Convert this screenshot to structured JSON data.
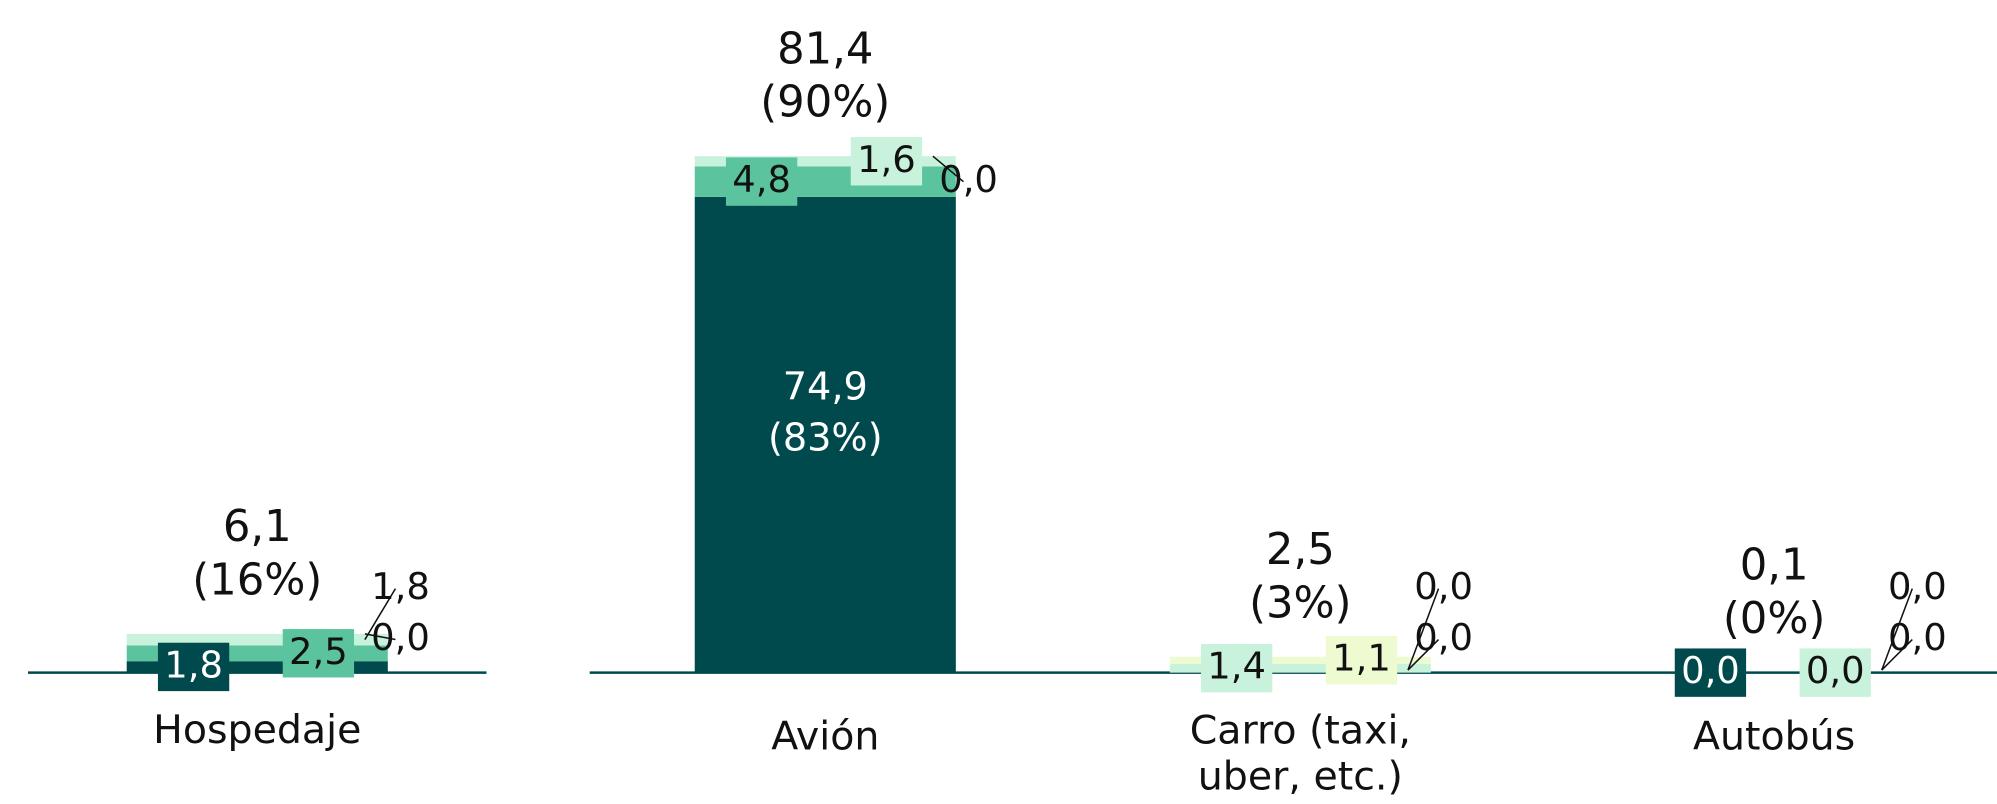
{
  "chart_data": {
    "type": "stacked_bar",
    "categories": [
      "Hospedaje",
      "Avión",
      "Carro (taxi, uber, etc.)",
      "Autobús"
    ],
    "series": [
      {
        "color": "#004a4d",
        "values": [
          1.8,
          74.9,
          0.0,
          0.0
        ],
        "value_labels": [
          "1,8",
          "74,9",
          "0,0",
          "0,0"
        ],
        "shares": [
          null,
          83,
          null,
          null
        ],
        "share_labels": [
          null,
          "(83%)",
          null,
          null
        ]
      },
      {
        "color": "#5bc49f",
        "values": [
          2.5,
          4.8,
          0.0,
          0.0
        ],
        "value_labels": [
          "2,5",
          "4,8",
          "0,0",
          "0,0"
        ]
      },
      {
        "color": "#c8f2dc",
        "values": [
          1.8,
          1.6,
          1.4,
          0.0
        ],
        "value_labels": [
          "1,8",
          "1,6",
          "1,4",
          "0,0"
        ]
      },
      {
        "color": "#eefad0",
        "values": [
          0.0,
          0.0,
          1.1,
          0.0
        ],
        "value_labels": [
          "0,0",
          "0,0",
          "1,1",
          "0,0"
        ]
      }
    ],
    "totals": [
      6.1,
      81.4,
      2.5,
      0.1
    ],
    "total_labels": [
      "6,1",
      "81,4",
      "2,5",
      "0,1"
    ],
    "total_shares": [
      16,
      90,
      3,
      0
    ],
    "total_share_labels": [
      "(16%)",
      "(90%)",
      "(3%)",
      "(0%)"
    ]
  }
}
